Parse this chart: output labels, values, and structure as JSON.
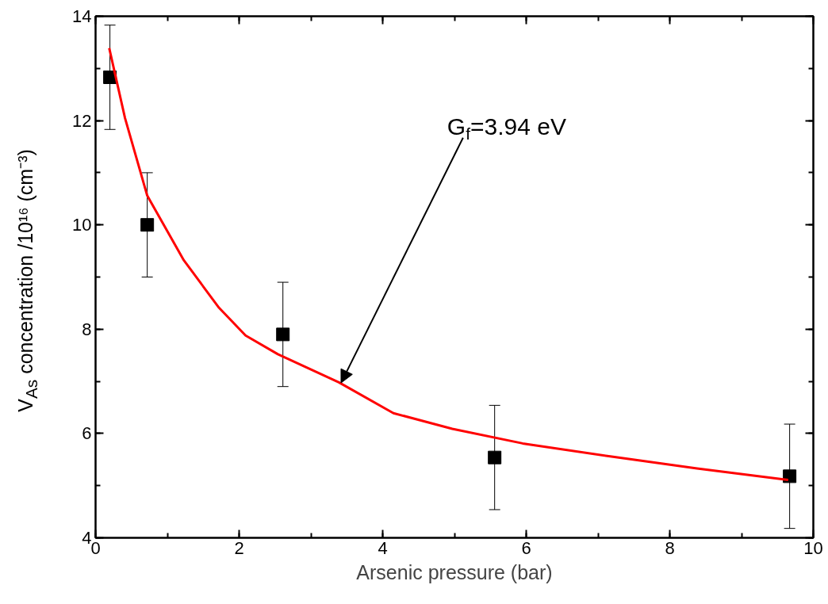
{
  "chart_data": {
    "type": "scatter",
    "xlabel": "Arsenic pressure (bar)",
    "ylabel": "V$_{As}$ concentration /10¹⁶ (cm⁻³)",
    "xlim": [
      0,
      10
    ],
    "ylim": [
      4,
      14
    ],
    "xticks": [
      0,
      2,
      4,
      6,
      8,
      10
    ],
    "yticks": [
      4,
      6,
      8,
      10,
      12,
      14
    ],
    "grid": false,
    "marker": "square",
    "annotations": [
      {
        "text": "G$_{f}$=3.94 eV",
        "x": 3.42,
        "y": 6.97
      }
    ],
    "series": [
      {
        "color": "#000000",
        "x": [
          0.2,
          0.72,
          2.61,
          5.56,
          9.67
        ],
        "values": [
          12.83,
          10.0,
          7.9,
          5.54,
          5.18
        ],
        "errors": [
          1,
          1,
          1,
          1,
          1
        ]
      },
      {
        "type": "line",
        "color": "#ff0000",
        "marker": "none",
        "line_style": "solid",
        "x": [
          0.19,
          0.41,
          0.72,
          1.23,
          1.72,
          2.09,
          2.54,
          3.39,
          4.15,
          4.97,
          5.95,
          7.17,
          8.38,
          9.65
        ],
        "values": [
          13.39,
          12.05,
          10.56,
          9.32,
          8.41,
          7.88,
          7.52,
          6.98,
          6.39,
          6.09,
          5.81,
          5.56,
          5.33,
          5.11
        ]
      }
    ]
  }
}
